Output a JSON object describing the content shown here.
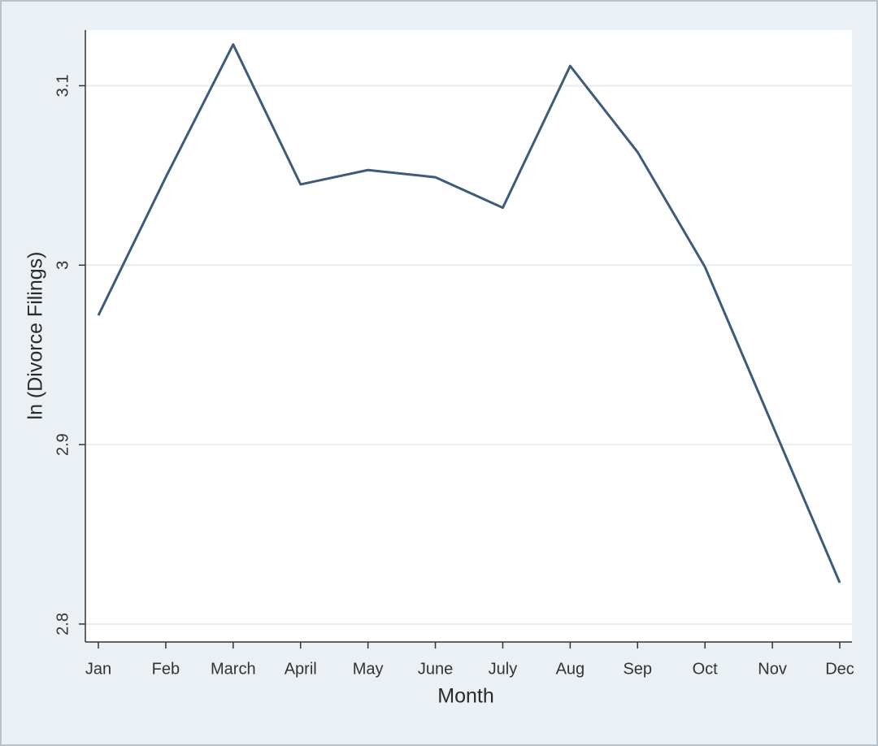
{
  "chart_data": {
    "type": "line",
    "x_label": "Month",
    "y_label": "ln (Divorce Filings)",
    "categories": [
      "Jan",
      "Feb",
      "March",
      "April",
      "May",
      "June",
      "July",
      "Aug",
      "Sep",
      "Oct",
      "Nov",
      "Dec"
    ],
    "series": [
      {
        "color": "#3e5b7a",
        "values": [
          2.972,
          3.049,
          3.123,
          3.045,
          3.053,
          3.049,
          3.032,
          3.111,
          3.063,
          2.999,
          2.911,
          2.823
        ]
      }
    ],
    "ylim": [
      2.79,
      3.131
    ],
    "yticks": [
      2.8,
      2.9,
      3,
      3.1
    ],
    "grid": true
  }
}
